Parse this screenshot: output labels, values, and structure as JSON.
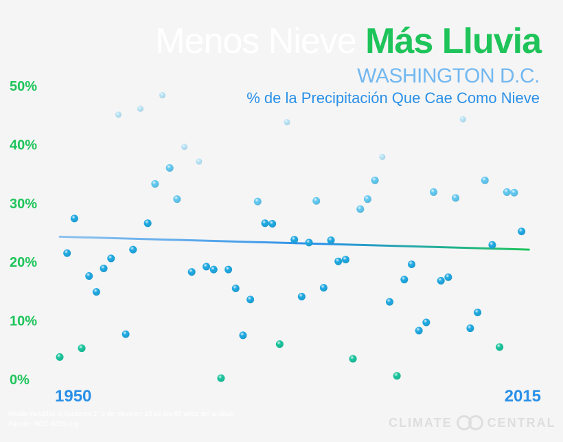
{
  "title": {
    "part1": "Menos Nieve",
    "part2": "Más Lluvia"
  },
  "subtitle": "WASHINGTON D.C.",
  "description": "% de la Precipitación Que Cae Como Nieve",
  "footnote": {
    "line1": "Media incluidas si hubieron 1\" o de nieve en 10 de los 65 años del análisis",
    "line2": "Fuente: RCC-ACIS.org"
  },
  "logo": {
    "left": "CLIMATE",
    "right": "CENTRAL",
    "icon": "climate-central-logo-icon"
  },
  "colors": {
    "green": "#1ec45a",
    "blue": "#2a90e8",
    "light_blue": "#73b8f0"
  },
  "chart_data": {
    "type": "scatter",
    "title": "Menos Nieve Más Lluvia",
    "xlabel": "",
    "ylabel": "",
    "xlim": [
      1950,
      2015
    ],
    "ylim": [
      0,
      50
    ],
    "x_tick_labels": [
      "1950",
      "2015"
    ],
    "y_ticks": [
      0,
      10,
      20,
      30,
      40,
      50
    ],
    "y_tick_labels": [
      "0%",
      "10%",
      "20%",
      "30%",
      "40%",
      "50%"
    ],
    "grid": false,
    "legend": "none",
    "points": [
      {
        "x": 1950,
        "y": 3.7
      },
      {
        "x": 1951,
        "y": 21.4
      },
      {
        "x": 1952,
        "y": 27.3
      },
      {
        "x": 1953,
        "y": 5.2
      },
      {
        "x": 1954,
        "y": 17.5
      },
      {
        "x": 1955,
        "y": 14.8
      },
      {
        "x": 1956,
        "y": 18.8
      },
      {
        "x": 1957,
        "y": 20.5
      },
      {
        "x": 1958,
        "y": 45.0
      },
      {
        "x": 1959,
        "y": 7.6
      },
      {
        "x": 1960,
        "y": 22.0
      },
      {
        "x": 1961,
        "y": 46.0
      },
      {
        "x": 1962,
        "y": 26.5
      },
      {
        "x": 1963,
        "y": 33.2
      },
      {
        "x": 1964,
        "y": 48.3
      },
      {
        "x": 1965,
        "y": 35.9
      },
      {
        "x": 1966,
        "y": 30.6
      },
      {
        "x": 1967,
        "y": 39.5
      },
      {
        "x": 1968,
        "y": 18.2
      },
      {
        "x": 1969,
        "y": 37.0
      },
      {
        "x": 1970,
        "y": 19.1
      },
      {
        "x": 1971,
        "y": 18.6
      },
      {
        "x": 1972,
        "y": 0.1
      },
      {
        "x": 1973,
        "y": 18.6
      },
      {
        "x": 1974,
        "y": 15.4
      },
      {
        "x": 1975,
        "y": 7.4
      },
      {
        "x": 1976,
        "y": 13.5
      },
      {
        "x": 1977,
        "y": 30.2
      },
      {
        "x": 1978,
        "y": 26.5
      },
      {
        "x": 1979,
        "y": 26.4
      },
      {
        "x": 1980,
        "y": 5.9
      },
      {
        "x": 1981,
        "y": 43.7
      },
      {
        "x": 1982,
        "y": 23.7
      },
      {
        "x": 1983,
        "y": 14.0
      },
      {
        "x": 1984,
        "y": 23.2
      },
      {
        "x": 1985,
        "y": 30.3
      },
      {
        "x": 1986,
        "y": 15.5
      },
      {
        "x": 1987,
        "y": 23.6
      },
      {
        "x": 1988,
        "y": 20.0
      },
      {
        "x": 1989,
        "y": 20.3
      },
      {
        "x": 1990,
        "y": 3.4
      },
      {
        "x": 1991,
        "y": 28.9
      },
      {
        "x": 1992,
        "y": 30.6
      },
      {
        "x": 1993,
        "y": 33.8
      },
      {
        "x": 1994,
        "y": 37.8
      },
      {
        "x": 1995,
        "y": 13.1
      },
      {
        "x": 1996,
        "y": 0.5
      },
      {
        "x": 1997,
        "y": 16.9
      },
      {
        "x": 1998,
        "y": 19.5
      },
      {
        "x": 1999,
        "y": 8.2
      },
      {
        "x": 2000,
        "y": 9.6
      },
      {
        "x": 2001,
        "y": 31.8
      },
      {
        "x": 2002,
        "y": 16.7
      },
      {
        "x": 2003,
        "y": 17.3
      },
      {
        "x": 2004,
        "y": 30.8
      },
      {
        "x": 2005,
        "y": 44.2
      },
      {
        "x": 2006,
        "y": 8.6
      },
      {
        "x": 2007,
        "y": 11.3
      },
      {
        "x": 2008,
        "y": 33.8
      },
      {
        "x": 2009,
        "y": 22.8
      },
      {
        "x": 2010,
        "y": 5.4
      },
      {
        "x": 2011,
        "y": 31.8
      },
      {
        "x": 2012,
        "y": 31.7
      },
      {
        "x": 2013,
        "y": 25.1
      }
    ],
    "trend": {
      "x": [
        1950,
        2014
      ],
      "y": [
        24.2,
        22.0
      ]
    }
  }
}
